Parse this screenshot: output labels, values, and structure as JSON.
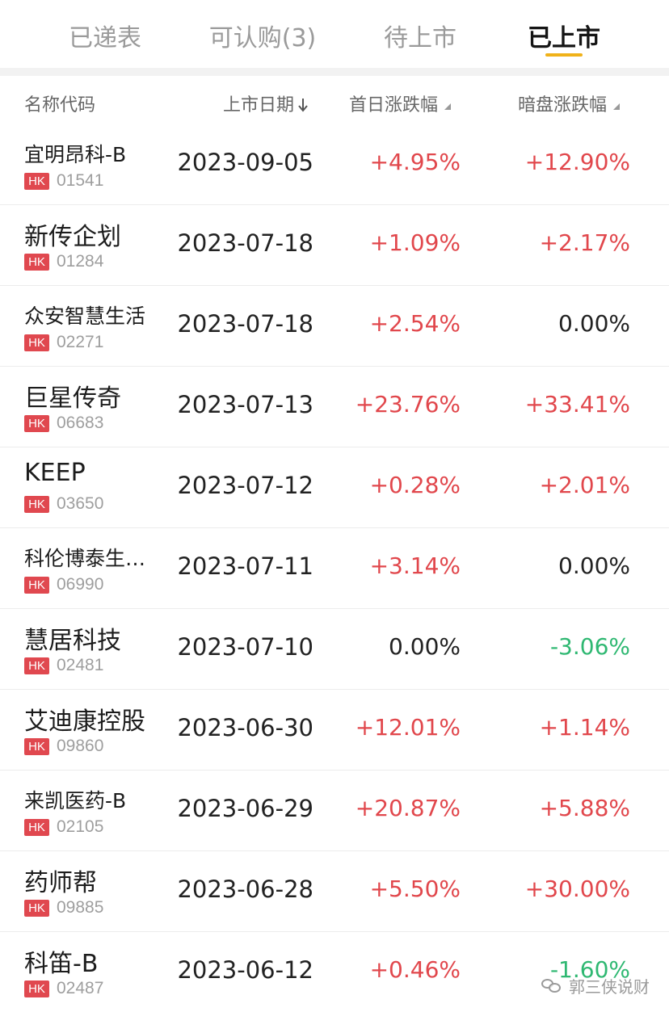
{
  "tabs": [
    {
      "label": "已递表"
    },
    {
      "label": "可认购(3)"
    },
    {
      "label": "待上市"
    },
    {
      "label": "已上市"
    }
  ],
  "columns": {
    "name": "名称代码",
    "date": "上市日期",
    "day1": "首日涨跌幅",
    "dark": "暗盘涨跌幅"
  },
  "colors": {
    "up": "#e1474c",
    "down": "#2fb872",
    "accent": "#f0b21a",
    "market_badge": "#e0484f"
  },
  "rows": [
    {
      "name": "宜明昂科-B",
      "market": "HK",
      "code": "01541",
      "date": "2023-09-05",
      "day1": "+4.95%",
      "dark": "+12.90%"
    },
    {
      "name": "新传企划",
      "market": "HK",
      "code": "01284",
      "date": "2023-07-18",
      "day1": "+1.09%",
      "dark": "+2.17%"
    },
    {
      "name": "众安智慧生活",
      "market": "HK",
      "code": "02271",
      "date": "2023-07-18",
      "day1": "+2.54%",
      "dark": "0.00%"
    },
    {
      "name": "巨星传奇",
      "market": "HK",
      "code": "06683",
      "date": "2023-07-13",
      "day1": "+23.76%",
      "dark": "+33.41%"
    },
    {
      "name": "KEEP",
      "market": "HK",
      "code": "03650",
      "date": "2023-07-12",
      "day1": "+0.28%",
      "dark": "+2.01%"
    },
    {
      "name": "科伦博泰生物...",
      "market": "HK",
      "code": "06990",
      "date": "2023-07-11",
      "day1": "+3.14%",
      "dark": "0.00%"
    },
    {
      "name": "慧居科技",
      "market": "HK",
      "code": "02481",
      "date": "2023-07-10",
      "day1": "0.00%",
      "dark": "-3.06%"
    },
    {
      "name": "艾迪康控股",
      "market": "HK",
      "code": "09860",
      "date": "2023-06-30",
      "day1": "+12.01%",
      "dark": "+1.14%"
    },
    {
      "name": "来凯医药-B",
      "market": "HK",
      "code": "02105",
      "date": "2023-06-29",
      "day1": "+20.87%",
      "dark": "+5.88%"
    },
    {
      "name": "药师帮",
      "market": "HK",
      "code": "09885",
      "date": "2023-06-28",
      "day1": "+5.50%",
      "dark": "+30.00%"
    },
    {
      "name": "科笛-B",
      "market": "HK",
      "code": "02487",
      "date": "2023-06-12",
      "day1": "+0.46%",
      "dark": "-1.60%"
    }
  ],
  "watermark": {
    "text": "郭三侠说财",
    "icon": "wechat-icon"
  }
}
